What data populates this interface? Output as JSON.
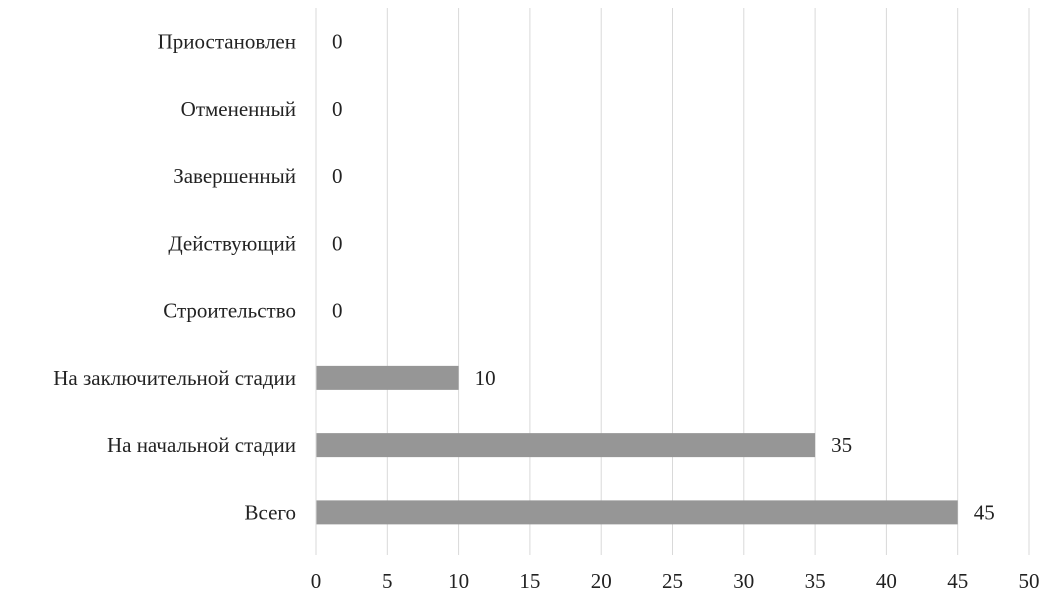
{
  "chart_data": {
    "type": "bar",
    "orientation": "horizontal",
    "categories": [
      "Приостановлен",
      "Отмененный",
      "Завершенный",
      "Действующий",
      "Строительство",
      "На заключительной стадии",
      "На начальной стадии",
      "Всего"
    ],
    "values": [
      0,
      0,
      0,
      0,
      0,
      10,
      35,
      45
    ],
    "title": "",
    "xlabel": "",
    "ylabel": "",
    "xlim": [
      0,
      50
    ],
    "x_ticks": [
      "0",
      "5",
      "10",
      "15",
      "20",
      "25",
      "30",
      "35",
      "40",
      "45",
      "50"
    ],
    "data_labels": [
      "0",
      "0",
      "0",
      "0",
      "0",
      "10",
      "35",
      "45"
    ],
    "grid": true,
    "legend": "none",
    "colors": {
      "bar": "#969696",
      "grid": "#d9d9d9",
      "axis": "#d9d9d9",
      "text": "#222222"
    }
  }
}
